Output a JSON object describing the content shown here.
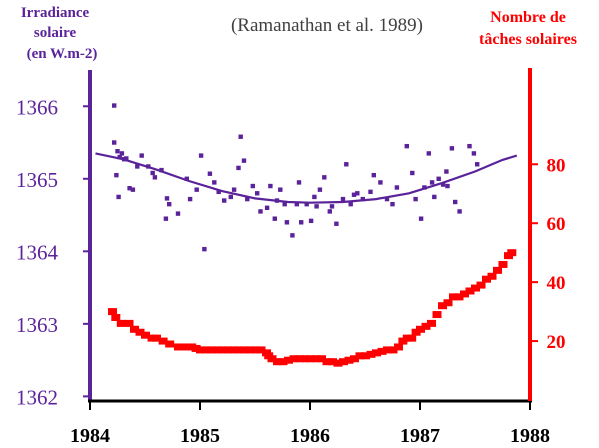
{
  "chart_data": {
    "type": "scatter",
    "title": "(Ramanathan et al. 1989)",
    "colors": {
      "irradiance": "#5a239a",
      "sunspots": "#ff0000",
      "xaxis": "#000000",
      "title": "#404040"
    },
    "x_axis": {
      "range": [
        1984,
        1988
      ],
      "ticks": [
        1984,
        1985,
        1986,
        1987,
        1988
      ],
      "tick_labels": [
        "1984",
        "1985",
        "1986",
        "1987",
        "1988"
      ]
    },
    "y_left": {
      "label_lines": [
        "Irradiance",
        "solaire",
        "(en W.m-2)"
      ],
      "range": [
        1361.95,
        1366.5
      ],
      "ticks": [
        1362,
        1363,
        1364,
        1365,
        1366
      ],
      "tick_labels": [
        "1362",
        "1363",
        "1364",
        "1365",
        "1366"
      ]
    },
    "y_right": {
      "label_lines": [
        "Nombre de",
        "tâches solaires"
      ],
      "range": [
        0,
        112
      ],
      "ticks": [
        20,
        40,
        60,
        80
      ],
      "tick_labels": [
        "20",
        "40",
        "60",
        "80"
      ]
    },
    "series": [
      {
        "axis": "left",
        "style": "markers",
        "points": [
          [
            1984.22,
            1366.01
          ],
          [
            1984.22,
            1365.5
          ],
          [
            1984.25,
            1365.38
          ],
          [
            1984.27,
            1365.3
          ],
          [
            1984.29,
            1365.35
          ],
          [
            1984.31,
            1365.27
          ],
          [
            1984.33,
            1365.28
          ],
          [
            1984.24,
            1365.05
          ],
          [
            1984.26,
            1364.75
          ],
          [
            1984.36,
            1364.87
          ],
          [
            1984.39,
            1364.85
          ],
          [
            1984.43,
            1365.17
          ],
          [
            1984.47,
            1365.32
          ],
          [
            1984.53,
            1365.17
          ],
          [
            1984.57,
            1365.08
          ],
          [
            1984.59,
            1365.02
          ],
          [
            1984.65,
            1365.12
          ],
          [
            1984.7,
            1364.73
          ],
          [
            1984.72,
            1364.65
          ],
          [
            1984.69,
            1364.45
          ],
          [
            1984.8,
            1364.52
          ],
          [
            1984.88,
            1365.0
          ],
          [
            1984.91,
            1364.72
          ],
          [
            1984.97,
            1364.85
          ],
          [
            1985.01,
            1365.32
          ],
          [
            1985.04,
            1364.03
          ],
          [
            1985.09,
            1365.07
          ],
          [
            1985.13,
            1364.95
          ],
          [
            1985.17,
            1364.82
          ],
          [
            1985.22,
            1364.7
          ],
          [
            1985.28,
            1364.75
          ],
          [
            1985.31,
            1364.85
          ],
          [
            1985.35,
            1365.15
          ],
          [
            1985.37,
            1365.58
          ],
          [
            1985.4,
            1365.25
          ],
          [
            1985.43,
            1364.72
          ],
          [
            1985.48,
            1364.9
          ],
          [
            1985.52,
            1364.8
          ],
          [
            1985.55,
            1364.55
          ],
          [
            1985.61,
            1364.6
          ],
          [
            1985.64,
            1364.9
          ],
          [
            1985.68,
            1364.45
          ],
          [
            1985.7,
            1364.7
          ],
          [
            1985.73,
            1364.85
          ],
          [
            1985.77,
            1364.65
          ],
          [
            1985.79,
            1364.4
          ],
          [
            1985.84,
            1364.22
          ],
          [
            1985.88,
            1364.65
          ],
          [
            1985.9,
            1364.95
          ],
          [
            1985.92,
            1364.4
          ],
          [
            1985.97,
            1364.65
          ],
          [
            1986.01,
            1364.42
          ],
          [
            1986.04,
            1364.75
          ],
          [
            1986.06,
            1364.62
          ],
          [
            1986.09,
            1364.85
          ],
          [
            1986.13,
            1365.02
          ],
          [
            1986.18,
            1364.55
          ],
          [
            1986.2,
            1364.62
          ],
          [
            1986.24,
            1364.38
          ],
          [
            1986.3,
            1364.72
          ],
          [
            1986.33,
            1365.2
          ],
          [
            1986.37,
            1364.65
          ],
          [
            1986.4,
            1364.78
          ],
          [
            1986.43,
            1364.8
          ],
          [
            1986.48,
            1364.72
          ],
          [
            1986.55,
            1364.82
          ],
          [
            1986.58,
            1365.05
          ],
          [
            1986.64,
            1364.95
          ],
          [
            1986.7,
            1364.72
          ],
          [
            1986.75,
            1364.65
          ],
          [
            1986.79,
            1364.88
          ],
          [
            1986.88,
            1365.45
          ],
          [
            1986.93,
            1365.08
          ],
          [
            1986.96,
            1364.72
          ],
          [
            1987.01,
            1364.45
          ],
          [
            1987.04,
            1364.88
          ],
          [
            1987.08,
            1365.35
          ],
          [
            1987.11,
            1364.95
          ],
          [
            1987.13,
            1364.75
          ],
          [
            1987.17,
            1365.0
          ],
          [
            1987.21,
            1364.92
          ],
          [
            1987.24,
            1365.1
          ],
          [
            1987.25,
            1364.9
          ],
          [
            1987.29,
            1365.42
          ],
          [
            1987.32,
            1364.68
          ],
          [
            1987.36,
            1364.55
          ],
          [
            1987.45,
            1365.45
          ],
          [
            1987.49,
            1365.35
          ],
          [
            1987.52,
            1365.2
          ]
        ]
      },
      {
        "axis": "left",
        "style": "trend-curve",
        "points": [
          [
            1984.05,
            1365.35
          ],
          [
            1984.3,
            1365.27
          ],
          [
            1984.6,
            1365.13
          ],
          [
            1984.9,
            1364.97
          ],
          [
            1985.2,
            1364.83
          ],
          [
            1985.5,
            1364.73
          ],
          [
            1985.8,
            1364.68
          ],
          [
            1986.0,
            1364.67
          ],
          [
            1986.3,
            1364.68
          ],
          [
            1986.6,
            1364.72
          ],
          [
            1986.9,
            1364.8
          ],
          [
            1987.2,
            1364.94
          ],
          [
            1987.5,
            1365.1
          ],
          [
            1987.75,
            1365.26
          ],
          [
            1987.88,
            1365.32
          ]
        ]
      },
      {
        "axis": "right",
        "style": "markers",
        "points": [
          [
            1984.2,
            30
          ],
          [
            1984.23,
            28
          ],
          [
            1984.28,
            26
          ],
          [
            1984.35,
            26
          ],
          [
            1984.4,
            24
          ],
          [
            1984.45,
            23
          ],
          [
            1984.5,
            22
          ],
          [
            1984.56,
            21
          ],
          [
            1984.6,
            21
          ],
          [
            1984.66,
            20
          ],
          [
            1984.72,
            19
          ],
          [
            1984.8,
            18
          ],
          [
            1984.86,
            18
          ],
          [
            1984.92,
            18
          ],
          [
            1984.96,
            17.5
          ],
          [
            1985.0,
            17
          ],
          [
            1985.05,
            17
          ],
          [
            1985.1,
            17
          ],
          [
            1985.15,
            17
          ],
          [
            1985.2,
            17
          ],
          [
            1985.25,
            17
          ],
          [
            1985.3,
            17
          ],
          [
            1985.35,
            17
          ],
          [
            1985.4,
            17
          ],
          [
            1985.45,
            17
          ],
          [
            1985.5,
            17
          ],
          [
            1985.55,
            17
          ],
          [
            1985.6,
            16
          ],
          [
            1985.62,
            15
          ],
          [
            1985.65,
            14
          ],
          [
            1985.7,
            13
          ],
          [
            1985.75,
            13
          ],
          [
            1985.8,
            13.5
          ],
          [
            1985.85,
            14
          ],
          [
            1985.9,
            14
          ],
          [
            1985.95,
            14
          ],
          [
            1986.0,
            14
          ],
          [
            1986.05,
            14
          ],
          [
            1986.1,
            14
          ],
          [
            1986.15,
            13
          ],
          [
            1986.2,
            13
          ],
          [
            1986.25,
            12.5
          ],
          [
            1986.3,
            13
          ],
          [
            1986.35,
            13.5
          ],
          [
            1986.4,
            14
          ],
          [
            1986.45,
            15
          ],
          [
            1986.5,
            15
          ],
          [
            1986.55,
            15.5
          ],
          [
            1986.6,
            16
          ],
          [
            1986.65,
            16.5
          ],
          [
            1986.7,
            17
          ],
          [
            1986.75,
            17
          ],
          [
            1986.8,
            18
          ],
          [
            1986.84,
            20
          ],
          [
            1986.88,
            21
          ],
          [
            1986.92,
            21
          ],
          [
            1986.96,
            23
          ],
          [
            1987.0,
            24
          ],
          [
            1987.05,
            25
          ],
          [
            1987.1,
            26
          ],
          [
            1987.15,
            29
          ],
          [
            1987.2,
            32
          ],
          [
            1987.25,
            33
          ],
          [
            1987.3,
            35
          ],
          [
            1987.35,
            35
          ],
          [
            1987.4,
            36
          ],
          [
            1987.45,
            37
          ],
          [
            1987.5,
            38
          ],
          [
            1987.55,
            39
          ],
          [
            1987.6,
            41
          ],
          [
            1987.65,
            42
          ],
          [
            1987.7,
            44
          ],
          [
            1987.75,
            46
          ],
          [
            1987.8,
            49
          ],
          [
            1987.83,
            50
          ]
        ]
      }
    ]
  }
}
